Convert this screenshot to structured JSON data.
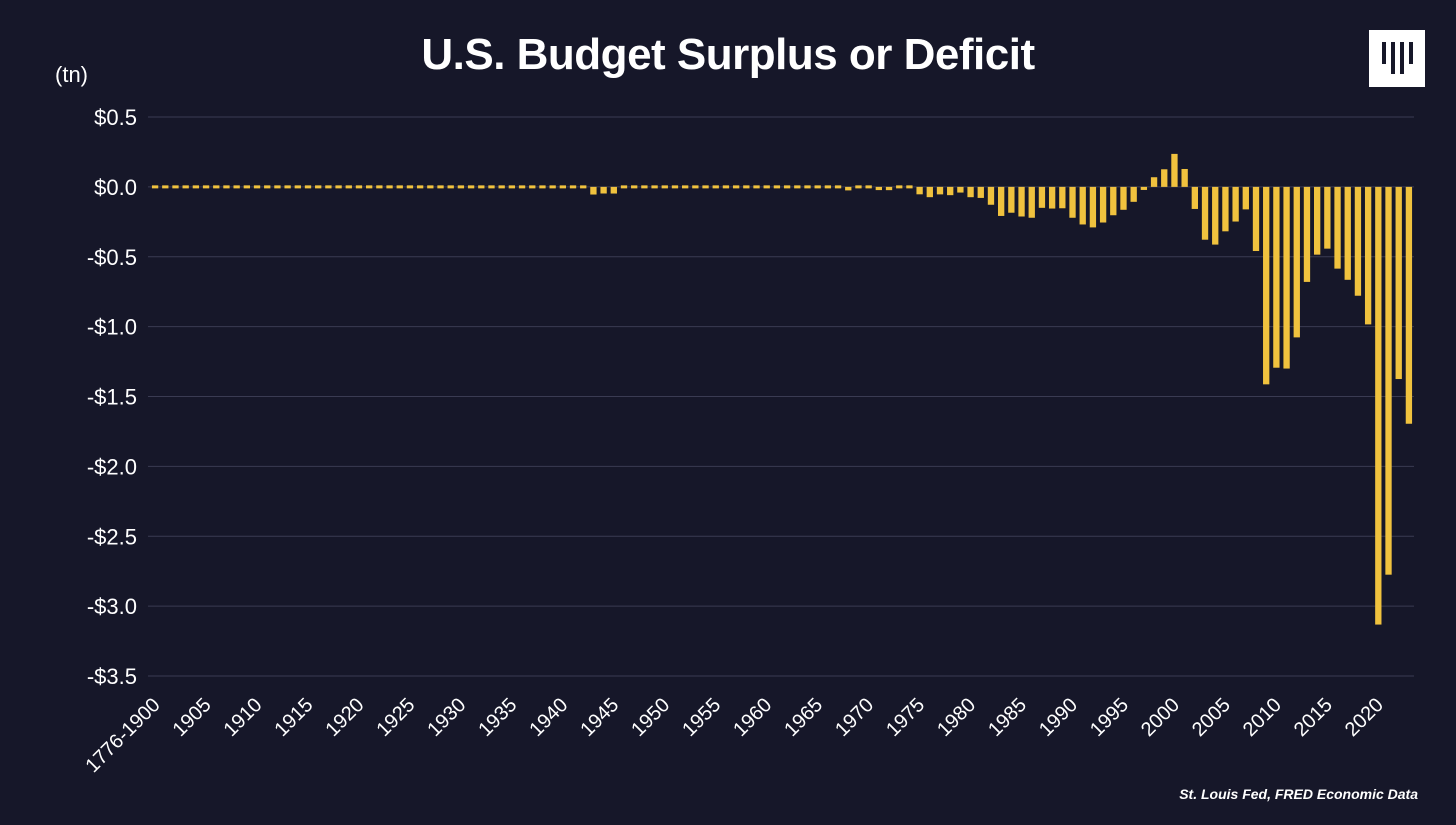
{
  "colors": {
    "background": "#161729",
    "bar": "#f0c23e",
    "grid": "#3a3b52",
    "text": "#ffffff"
  },
  "logo": {
    "icon": "brand-logo-icon"
  },
  "source": "St. Louis Fed, FRED Economic Data",
  "chart_data": {
    "type": "bar",
    "title": "U.S. Budget Surplus or Deficit",
    "ylabel": "(tn)",
    "ylim": [
      -3.5,
      0.5
    ],
    "yticks": [
      {
        "value": 0.5,
        "label": "$0.5"
      },
      {
        "value": 0.0,
        "label": "$0.0"
      },
      {
        "value": -0.5,
        "label": "-$0.5"
      },
      {
        "value": -1.0,
        "label": "-$1.0"
      },
      {
        "value": -1.5,
        "label": "-$1.5"
      },
      {
        "value": -2.0,
        "label": "-$2.0"
      },
      {
        "value": -2.5,
        "label": "-$2.5"
      },
      {
        "value": -3.0,
        "label": "-$3.0"
      },
      {
        "value": -3.5,
        "label": "-$3.5"
      }
    ],
    "grid": true,
    "xtick_labels": [
      "1776-1900",
      "1905",
      "1910",
      "1915",
      "1920",
      "1925",
      "1930",
      "1935",
      "1940",
      "1945",
      "1950",
      "1955",
      "1960",
      "1965",
      "1970",
      "1975",
      "1980",
      "1985",
      "1990",
      "1995",
      "2000",
      "2005",
      "2010",
      "2015",
      "2020"
    ],
    "categories": [
      "1776-1900",
      "1901",
      "1902",
      "1903",
      "1904",
      "1905",
      "1906",
      "1907",
      "1908",
      "1909",
      "1910",
      "1911",
      "1912",
      "1913",
      "1914",
      "1915",
      "1916",
      "1917",
      "1918",
      "1919",
      "1920",
      "1921",
      "1922",
      "1923",
      "1924",
      "1925",
      "1926",
      "1927",
      "1928",
      "1929",
      "1930",
      "1931",
      "1932",
      "1933",
      "1934",
      "1935",
      "1936",
      "1937",
      "1938",
      "1939",
      "1940",
      "1941",
      "1942",
      "1943",
      "1944",
      "1945",
      "1946",
      "1947",
      "1948",
      "1949",
      "1950",
      "1951",
      "1952",
      "1953",
      "1954",
      "1955",
      "1956",
      "1957",
      "1958",
      "1959",
      "1960",
      "1961",
      "1962",
      "1963",
      "1964",
      "1965",
      "1966",
      "1967",
      "1968",
      "1969",
      "1970",
      "1971",
      "1972",
      "1973",
      "1974",
      "1975",
      "1976",
      "1977",
      "1978",
      "1979",
      "1980",
      "1981",
      "1982",
      "1983",
      "1984",
      "1985",
      "1986",
      "1987",
      "1988",
      "1989",
      "1990",
      "1991",
      "1992",
      "1993",
      "1994",
      "1995",
      "1996",
      "1997",
      "1998",
      "1999",
      "2000",
      "2001",
      "2002",
      "2003",
      "2004",
      "2005",
      "2006",
      "2007",
      "2008",
      "2009",
      "2010",
      "2011",
      "2012",
      "2013",
      "2014",
      "2015",
      "2016",
      "2017",
      "2018",
      "2019",
      "2020",
      "2021",
      "2022",
      "2023"
    ],
    "values": [
      0.0,
      0.0,
      0.0,
      0.0,
      0.0,
      0.0,
      0.0,
      0.0,
      0.0,
      0.0,
      0.0,
      0.0,
      0.0,
      0.0,
      0.0,
      0.0,
      0.0,
      -0.001,
      -0.009,
      -0.013,
      0.0003,
      0.0005,
      0.0007,
      0.0007,
      0.0009,
      0.0007,
      0.0009,
      0.0012,
      0.0009,
      0.0007,
      0.0007,
      -0.0005,
      -0.0027,
      -0.0026,
      -0.0036,
      -0.0028,
      -0.0044,
      -0.0028,
      -0.0001,
      -0.0029,
      -0.0029,
      -0.0049,
      -0.0205,
      -0.0548,
      -0.0474,
      -0.0477,
      -0.0159,
      0.004,
      0.0118,
      0.0006,
      -0.0031,
      0.0061,
      -0.0015,
      -0.0065,
      -0.0012,
      -0.003,
      0.0039,
      0.0034,
      -0.0028,
      -0.0128,
      0.0003,
      -0.0033,
      -0.0071,
      -0.0048,
      -0.0059,
      -0.0014,
      -0.0037,
      -0.0086,
      -0.0252,
      0.0032,
      -0.0028,
      -0.023,
      -0.0234,
      -0.0149,
      -0.0061,
      -0.0532,
      -0.0737,
      -0.0537,
      -0.0593,
      -0.0407,
      -0.0738,
      -0.079,
      -0.128,
      -0.208,
      -0.185,
      -0.212,
      -0.221,
      -0.15,
      -0.155,
      -0.153,
      -0.221,
      -0.269,
      -0.29,
      -0.255,
      -0.203,
      -0.164,
      -0.107,
      -0.022,
      0.069,
      0.126,
      0.236,
      0.128,
      -0.158,
      -0.378,
      -0.413,
      -0.318,
      -0.248,
      -0.161,
      -0.459,
      -1.413,
      -1.294,
      -1.3,
      -1.077,
      -0.68,
      -0.485,
      -0.442,
      -0.585,
      -0.665,
      -0.779,
      -0.984,
      -3.132,
      -2.775,
      -1.375,
      -1.695
    ]
  }
}
